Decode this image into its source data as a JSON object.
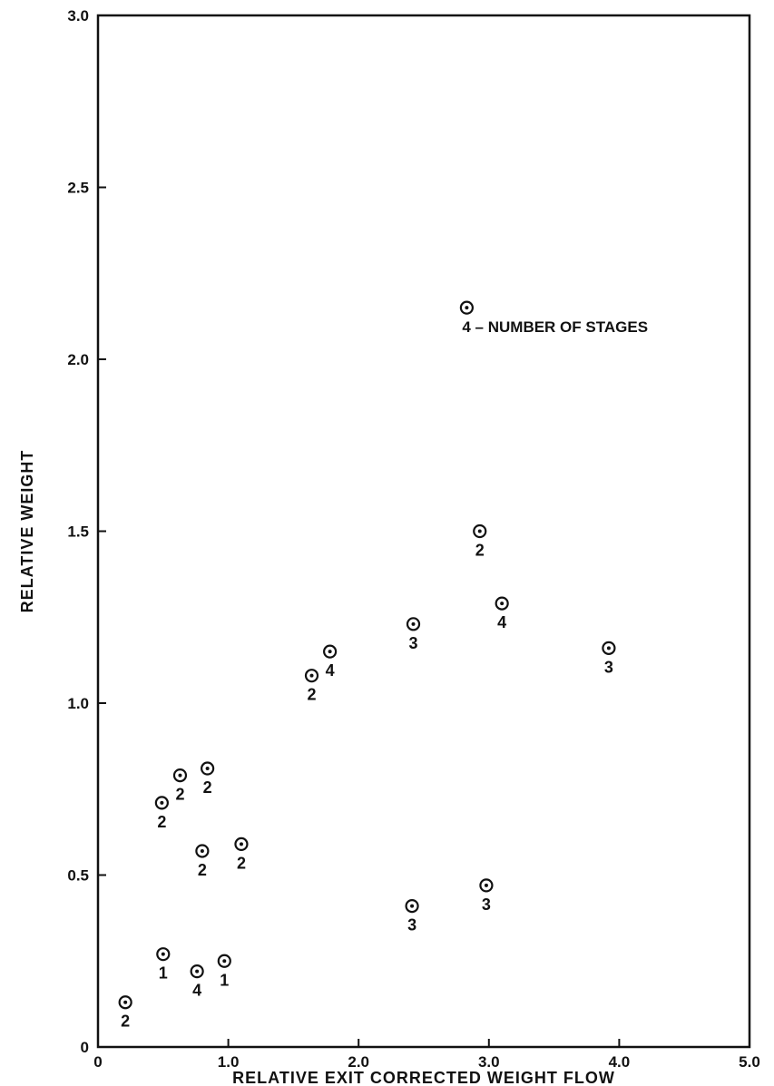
{
  "chart_data": {
    "type": "scatter",
    "xlabel": "RELATIVE EXIT CORRECTED WEIGHT FLOW",
    "ylabel": "RELATIVE WEIGHT",
    "xlim": [
      0,
      5.0
    ],
    "ylim": [
      0,
      3.0
    ],
    "x_ticks": [
      {
        "value": 0,
        "label": "0"
      },
      {
        "value": 1.0,
        "label": "1.0"
      },
      {
        "value": 2.0,
        "label": "2.0"
      },
      {
        "value": 3.0,
        "label": "3.0"
      },
      {
        "value": 4.0,
        "label": "4.0"
      },
      {
        "value": 5.0,
        "label": "5.0"
      }
    ],
    "y_ticks": [
      {
        "value": 0,
        "label": "0"
      },
      {
        "value": 0.5,
        "label": "0.5"
      },
      {
        "value": 1.0,
        "label": "1.0"
      },
      {
        "value": 1.5,
        "label": "1.5"
      },
      {
        "value": 2.0,
        "label": "2.0"
      },
      {
        "value": 2.5,
        "label": "2.5"
      },
      {
        "value": 3.0,
        "label": "3.0"
      }
    ],
    "grid": false,
    "legend": {
      "label": "4",
      "text": "4 – NUMBER OF STAGES",
      "x": 2.83,
      "y": 2.15
    },
    "points": [
      {
        "x": 0.21,
        "y": 0.13,
        "label": "2"
      },
      {
        "x": 0.5,
        "y": 0.27,
        "label": "1"
      },
      {
        "x": 0.76,
        "y": 0.22,
        "label": "4"
      },
      {
        "x": 0.97,
        "y": 0.25,
        "label": "1"
      },
      {
        "x": 0.49,
        "y": 0.71,
        "label": "2"
      },
      {
        "x": 0.63,
        "y": 0.79,
        "label": "2"
      },
      {
        "x": 0.84,
        "y": 0.81,
        "label": "2"
      },
      {
        "x": 0.8,
        "y": 0.57,
        "label": "2"
      },
      {
        "x": 1.1,
        "y": 0.59,
        "label": "2"
      },
      {
        "x": 1.64,
        "y": 1.08,
        "label": "2"
      },
      {
        "x": 1.78,
        "y": 1.15,
        "label": "4"
      },
      {
        "x": 2.42,
        "y": 1.23,
        "label": "3"
      },
      {
        "x": 2.93,
        "y": 1.5,
        "label": "2"
      },
      {
        "x": 3.1,
        "y": 1.29,
        "label": "4"
      },
      {
        "x": 3.92,
        "y": 1.16,
        "label": "3"
      },
      {
        "x": 2.41,
        "y": 0.41,
        "label": "3"
      },
      {
        "x": 2.98,
        "y": 0.47,
        "label": "3"
      }
    ]
  }
}
